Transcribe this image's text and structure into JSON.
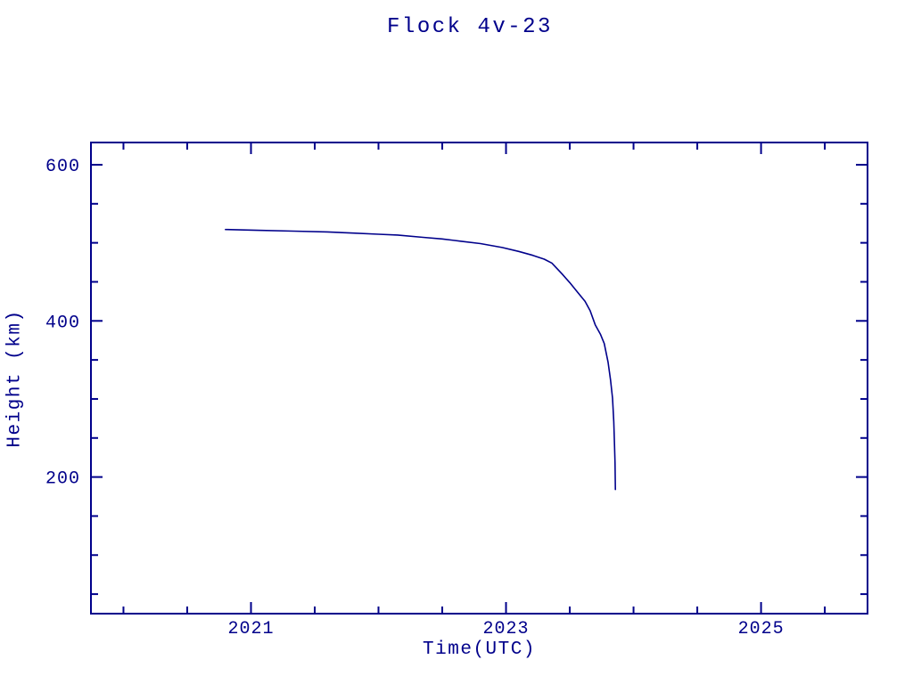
{
  "chart_data": {
    "type": "line",
    "title": "Flock 4v-23",
    "xlabel": "Time(UTC)",
    "ylabel": "Height (km)",
    "line_color": "#00008B",
    "background_color": "#FFFFFF",
    "grid": false,
    "legend": null,
    "xlim": [
      2019.745,
      2025.835
    ],
    "ylim": [
      25,
      628.5
    ],
    "x_major_ticks": [
      2021,
      2023,
      2025
    ],
    "x_major_tick_labels": [
      "2021",
      "2023",
      "2025"
    ],
    "x_minor_ticks": [
      2020,
      2020.5,
      2021.5,
      2022,
      2022.5,
      2023.5,
      2024,
      2024.5,
      2025.5
    ],
    "y_major_ticks": [
      200,
      400,
      600
    ],
    "y_major_tick_labels": [
      "200",
      "400",
      "600"
    ],
    "y_minor_ticks": [
      50,
      100,
      150,
      250,
      300,
      350,
      450,
      500,
      550
    ],
    "series": [
      {
        "name": "Flock 4v-23 height",
        "points": [
          [
            2020.8,
            517
          ],
          [
            2021.05,
            516
          ],
          [
            2021.33,
            515
          ],
          [
            2021.6,
            514
          ],
          [
            2021.8,
            512.5
          ],
          [
            2022.0,
            511
          ],
          [
            2022.15,
            510
          ],
          [
            2022.35,
            507
          ],
          [
            2022.5,
            505
          ],
          [
            2022.65,
            502
          ],
          [
            2022.8,
            499
          ],
          [
            2022.97,
            494
          ],
          [
            2023.1,
            489
          ],
          [
            2023.21,
            484
          ],
          [
            2023.3,
            479
          ],
          [
            2023.36,
            474
          ],
          [
            2023.44,
            460
          ],
          [
            2023.5,
            449
          ],
          [
            2023.56,
            437
          ],
          [
            2023.62,
            425
          ],
          [
            2023.66,
            413
          ],
          [
            2023.7,
            395
          ],
          [
            2023.74,
            383
          ],
          [
            2023.77,
            371
          ],
          [
            2023.8,
            347
          ],
          [
            2023.82,
            324
          ],
          [
            2023.835,
            301
          ],
          [
            2023.845,
            271
          ],
          [
            2023.851,
            242
          ],
          [
            2023.855,
            218
          ],
          [
            2023.858,
            184
          ]
        ]
      }
    ]
  }
}
